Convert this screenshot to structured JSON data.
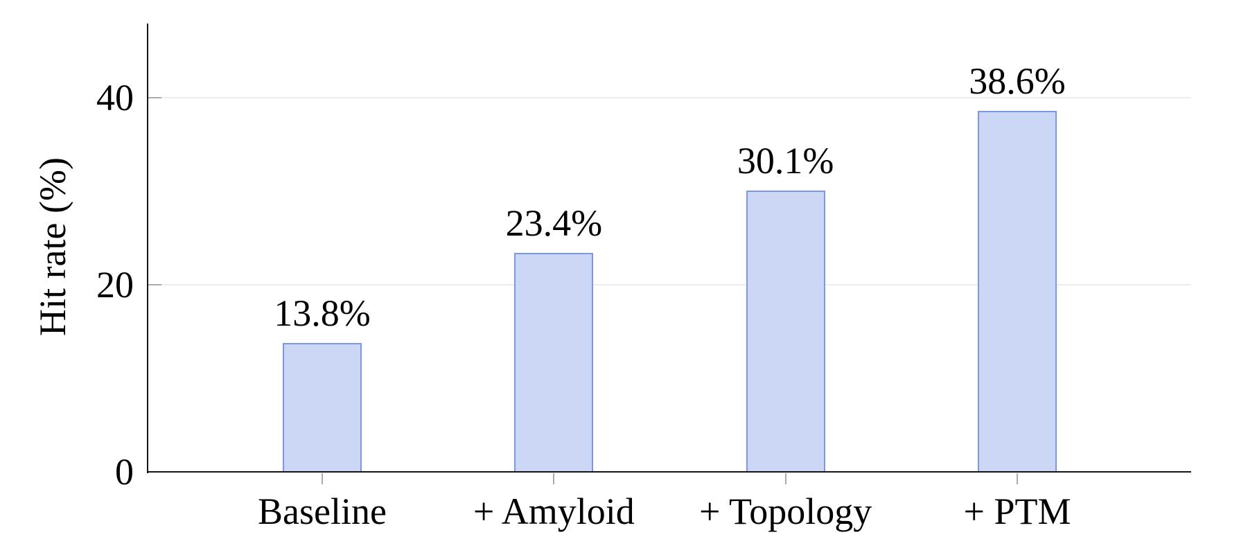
{
  "chart_data": {
    "type": "bar",
    "title": "",
    "xlabel": "",
    "ylabel": "Hit rate (%)",
    "categories": [
      "Baseline",
      "+ Amyloid",
      "+ Topology",
      "+ PTM"
    ],
    "values": [
      13.8,
      23.4,
      30.1,
      38.6
    ],
    "value_labels": [
      "13.8%",
      "23.4%",
      "30.1%",
      "38.6%"
    ],
    "yticks": [
      0,
      20,
      40
    ],
    "ytick_labels": [
      "0",
      "20",
      "40"
    ],
    "ylim": [
      0,
      48
    ],
    "grid": "horizontal-gridlines-at-yticks",
    "legend": "none",
    "colors": {
      "bar_fill": "#cbd7f5",
      "bar_border": "#7b97e8",
      "gridline": "#ededed",
      "tick": "#ababab",
      "axis": "#141414",
      "text": "#000000",
      "background": "#ffffff"
    }
  }
}
